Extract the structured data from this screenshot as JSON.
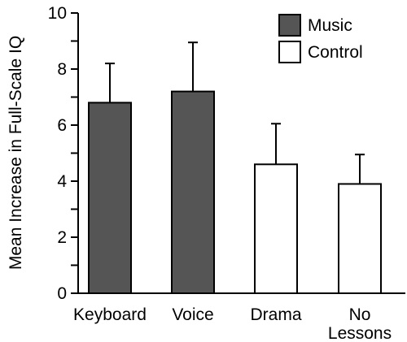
{
  "chart_data": {
    "type": "bar",
    "categories": [
      "Keyboard",
      "Voice",
      "Drama",
      "No Lessons"
    ],
    "category_labels": [
      [
        "Keyboard"
      ],
      [
        "Voice"
      ],
      [
        "Drama"
      ],
      [
        "No",
        "Lessons"
      ]
    ],
    "values": [
      6.8,
      7.2,
      4.6,
      3.9
    ],
    "errors": [
      1.4,
      1.75,
      1.45,
      1.05
    ],
    "groups": [
      "Music",
      "Music",
      "Control",
      "Control"
    ],
    "ylabel": "Mean Increase in Full-Scale IQ",
    "xlabel": "",
    "ylim": [
      0,
      10
    ],
    "yticks": [
      0,
      2,
      4,
      6,
      8,
      10
    ],
    "legend": {
      "position": "top-right",
      "entries": [
        {
          "name": "Music",
          "fill": "#555555"
        },
        {
          "name": "Control",
          "fill": "#ffffff"
        }
      ]
    },
    "grid": false
  }
}
